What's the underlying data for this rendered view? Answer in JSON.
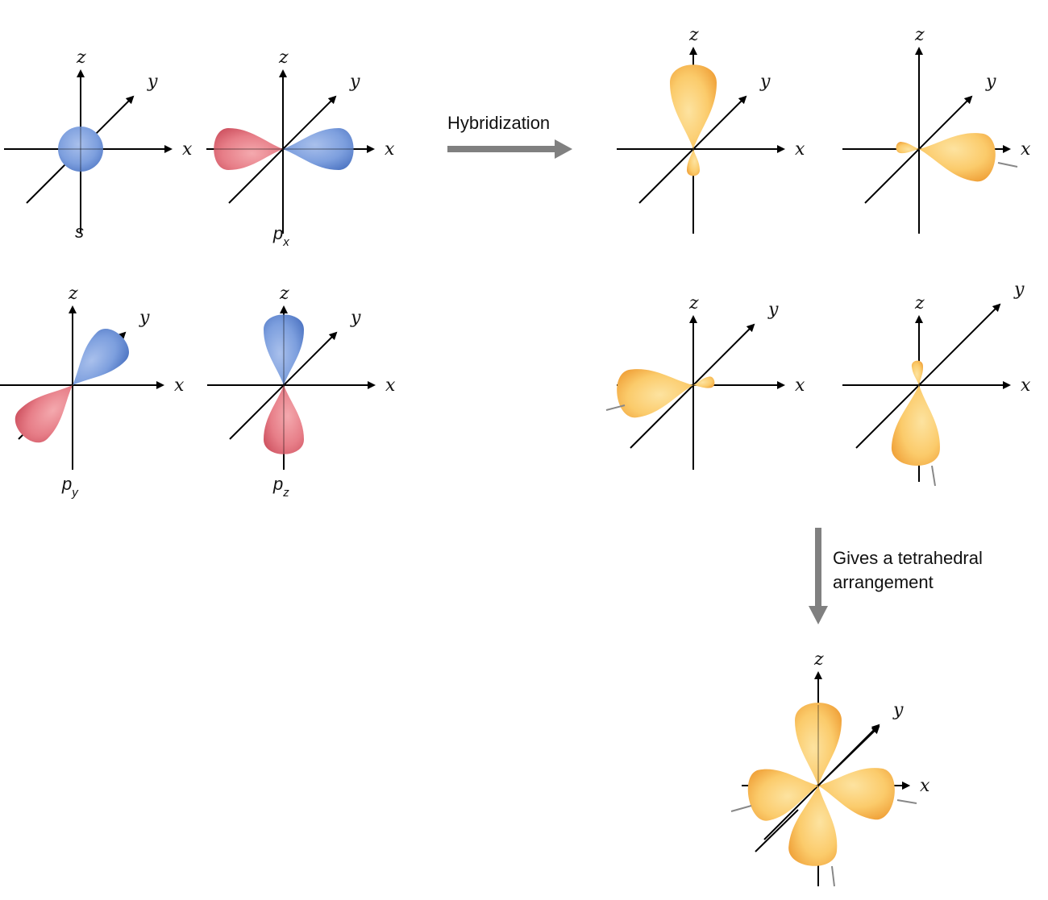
{
  "axis_labels": {
    "x": "x",
    "y": "y",
    "z": "z"
  },
  "atomic_orbitals": [
    {
      "label": "s",
      "subscript": ""
    },
    {
      "label": "p",
      "subscript": "x"
    },
    {
      "label": "p",
      "subscript": "y"
    },
    {
      "label": "p",
      "subscript": "z"
    }
  ],
  "hybridization_arrow": {
    "label": "Hybridization"
  },
  "tetrahedral_arrow": {
    "label_line1": "Gives a tetrahedral",
    "label_line2": "arrangement"
  },
  "colors": {
    "positive_lobe": "#7396d8",
    "negative_lobe": "#e3737f",
    "hybrid_lobe": "#f7bb4c",
    "arrow": "#808080",
    "axis": "#000000"
  }
}
